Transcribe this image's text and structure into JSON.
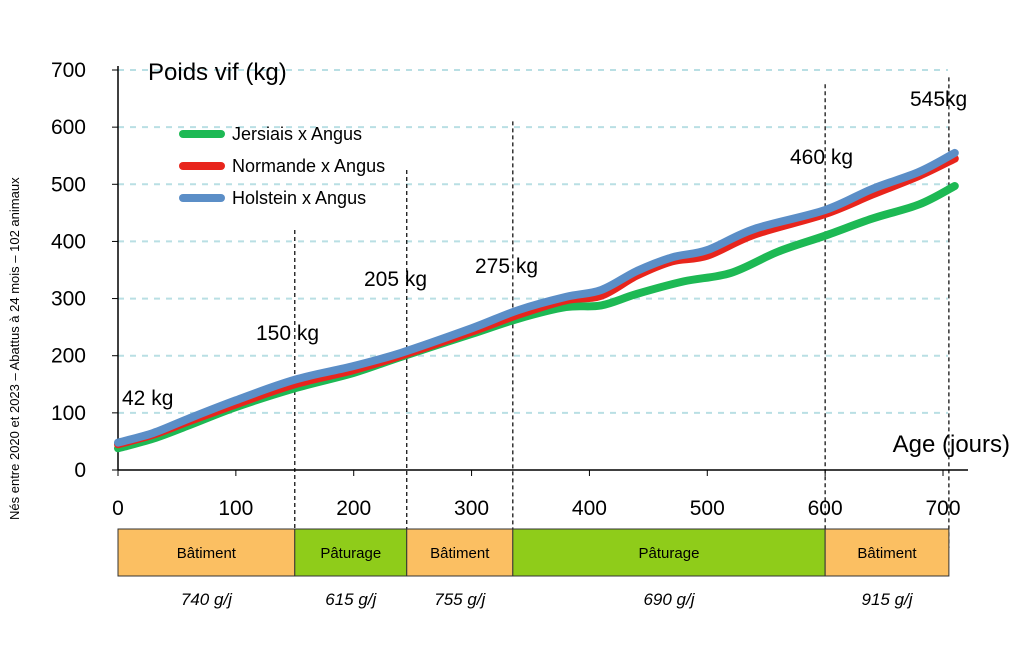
{
  "chart_data": {
    "type": "line",
    "xlabel": "Age (jours)",
    "ylabel": "Poids vif (kg)",
    "side_note": "Nés entre 2020 et 2023 – Abattus à 24 mois – 102 animaux",
    "xlim": [
      0,
      710
    ],
    "ylim": [
      0,
      700
    ],
    "x_ticks": [
      0,
      100,
      200,
      300,
      400,
      500,
      600,
      700
    ],
    "y_ticks": [
      0,
      100,
      200,
      300,
      400,
      500,
      600,
      700
    ],
    "grid": "horizontal dashed",
    "legend_position": "top-left",
    "series": [
      {
        "name": "Jersiais x Angus",
        "color": "#1db954",
        "points": [
          [
            0,
            38
          ],
          [
            30,
            55
          ],
          [
            60,
            78
          ],
          [
            100,
            110
          ],
          [
            150,
            143
          ],
          [
            200,
            170
          ],
          [
            240,
            198
          ],
          [
            300,
            238
          ],
          [
            340,
            265
          ],
          [
            380,
            285
          ],
          [
            410,
            288
          ],
          [
            440,
            308
          ],
          [
            480,
            330
          ],
          [
            520,
            345
          ],
          [
            560,
            382
          ],
          [
            600,
            410
          ],
          [
            640,
            440
          ],
          [
            680,
            465
          ],
          [
            710,
            497
          ]
        ]
      },
      {
        "name": "Normande x Angus",
        "color": "#e8251c",
        "points": [
          [
            0,
            45
          ],
          [
            30,
            62
          ],
          [
            60,
            85
          ],
          [
            100,
            115
          ],
          [
            150,
            150
          ],
          [
            200,
            175
          ],
          [
            240,
            200
          ],
          [
            300,
            242
          ],
          [
            340,
            272
          ],
          [
            380,
            297
          ],
          [
            410,
            305
          ],
          [
            440,
            340
          ],
          [
            470,
            365
          ],
          [
            500,
            375
          ],
          [
            540,
            412
          ],
          [
            600,
            448
          ],
          [
            640,
            482
          ],
          [
            680,
            515
          ],
          [
            710,
            545
          ]
        ]
      },
      {
        "name": "Holstein x Angus",
        "color": "#5b8ec7",
        "points": [
          [
            0,
            48
          ],
          [
            30,
            65
          ],
          [
            60,
            90
          ],
          [
            100,
            122
          ],
          [
            150,
            158
          ],
          [
            200,
            182
          ],
          [
            240,
            205
          ],
          [
            300,
            248
          ],
          [
            340,
            280
          ],
          [
            380,
            303
          ],
          [
            410,
            315
          ],
          [
            440,
            348
          ],
          [
            470,
            372
          ],
          [
            500,
            385
          ],
          [
            540,
            422
          ],
          [
            600,
            455
          ],
          [
            640,
            492
          ],
          [
            680,
            522
          ],
          [
            710,
            555
          ]
        ]
      }
    ],
    "markers": [
      {
        "x": 0,
        "label": "42 kg"
      },
      {
        "x": 150,
        "label": "150 kg"
      },
      {
        "x": 245,
        "label": "205 kg"
      },
      {
        "x": 335,
        "label": "275 kg"
      },
      {
        "x": 600,
        "label": "460 kg"
      },
      {
        "x": 705,
        "label": "545kg"
      }
    ],
    "phases": [
      {
        "start": 0,
        "end": 150,
        "label": "Bâtiment",
        "color": "#fbbf62",
        "rate": "740 g/j"
      },
      {
        "start": 150,
        "end": 245,
        "label": "Pâturage",
        "color": "#8fcc1a",
        "rate": "615 g/j"
      },
      {
        "start": 245,
        "end": 335,
        "label": "Bâtiment",
        "color": "#fbbf62",
        "rate": "755 g/j"
      },
      {
        "start": 335,
        "end": 600,
        "label": "Pâturage",
        "color": "#8fcc1a",
        "rate": "690 g/j"
      },
      {
        "start": 600,
        "end": 705,
        "label": "Bâtiment",
        "color": "#fbbf62",
        "rate": "915 g/j"
      }
    ]
  }
}
